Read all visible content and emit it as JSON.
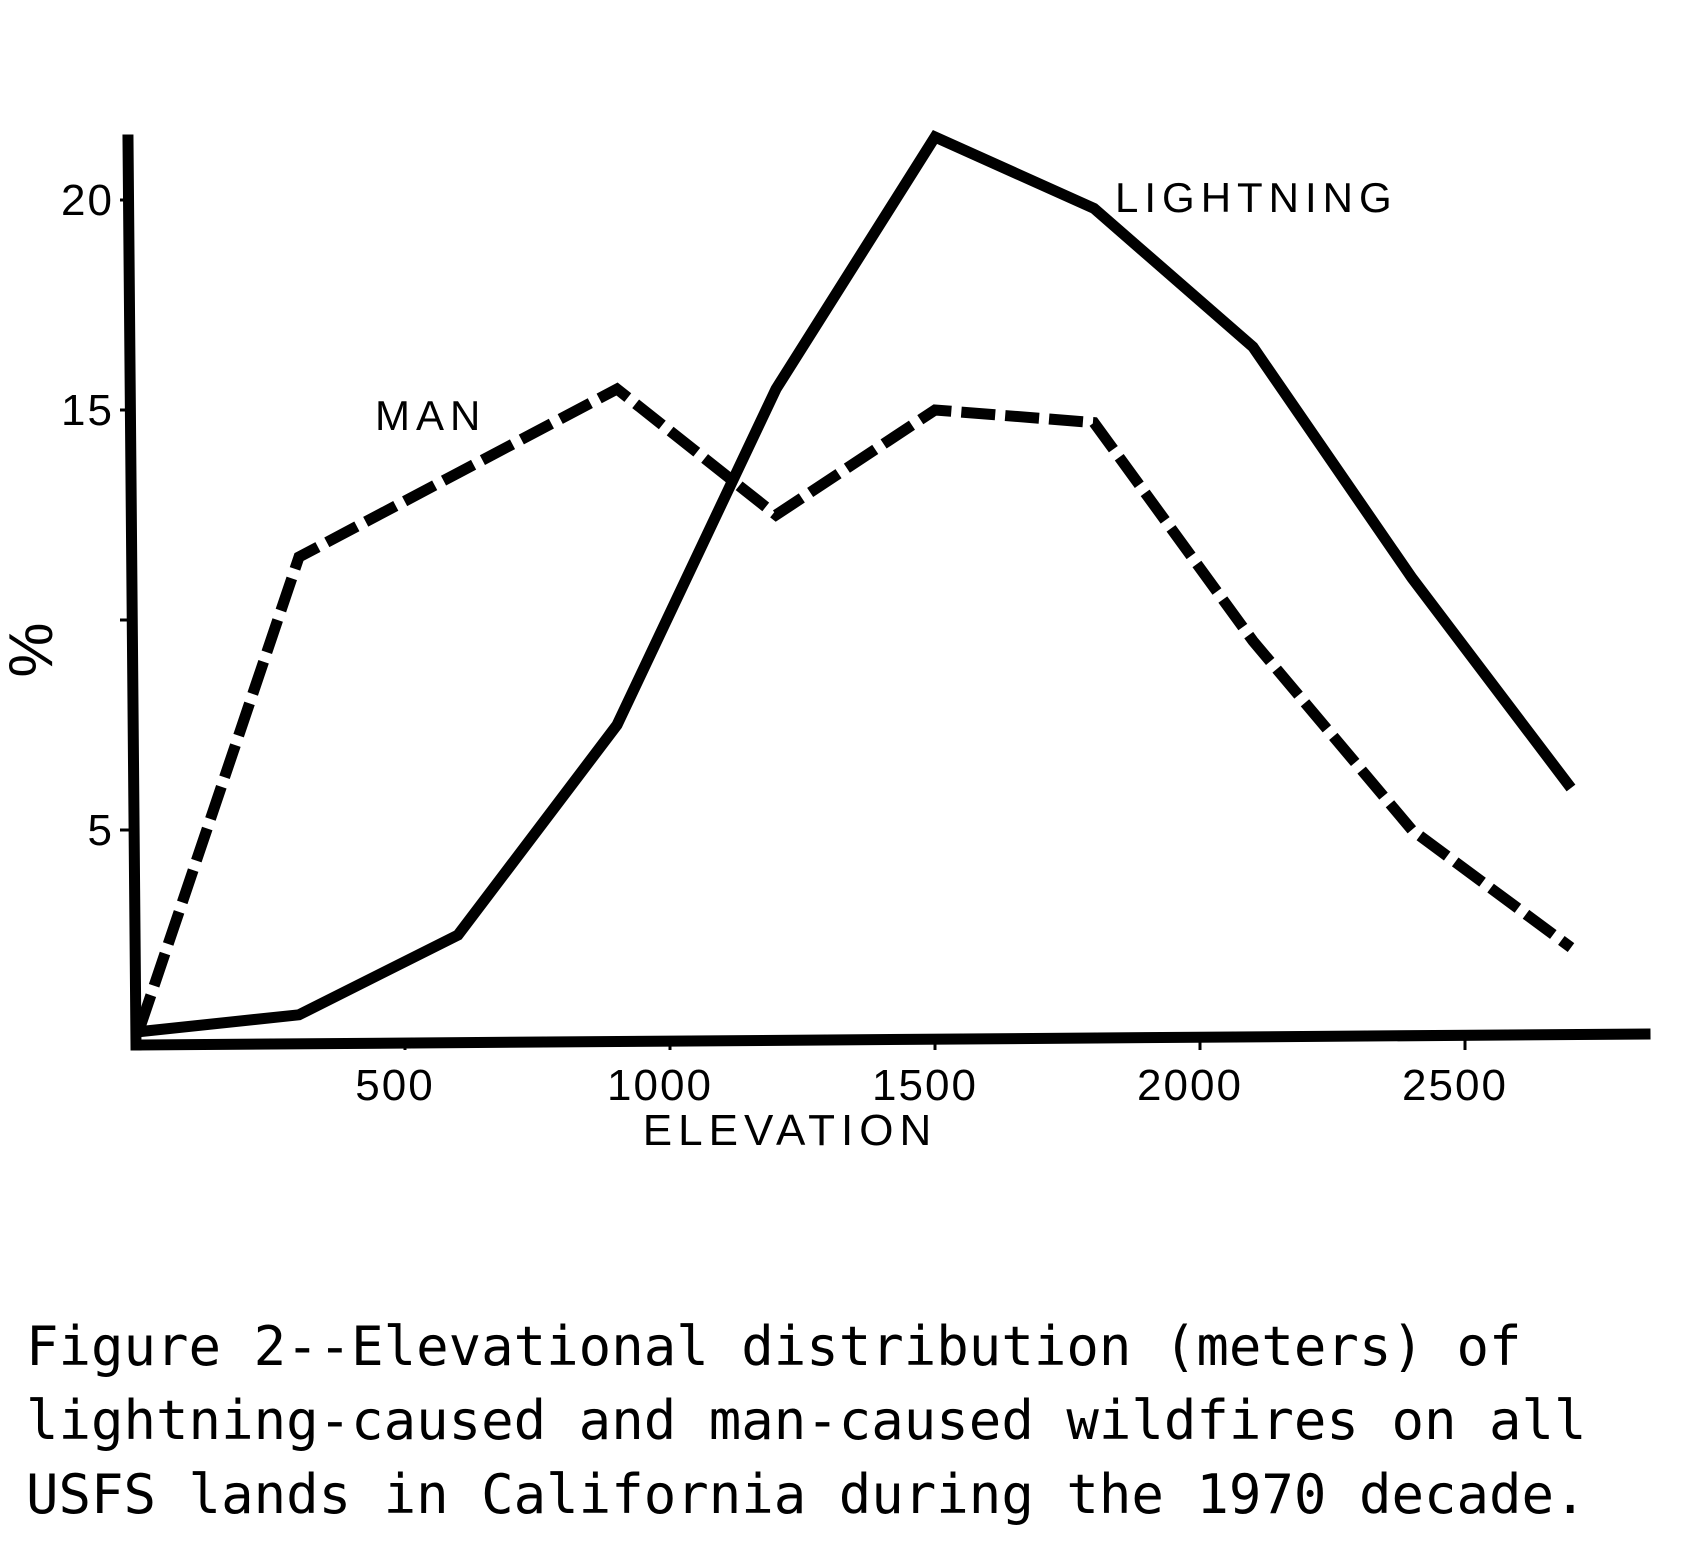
{
  "chart_data": {
    "type": "line",
    "title": "",
    "xlabel": "ELEVATION",
    "ylabel": "%",
    "xlim": [
      0,
      2800
    ],
    "ylim": [
      0,
      21.5
    ],
    "x_ticks": [
      500,
      1000,
      1500,
      2000,
      2500
    ],
    "y_ticks": [
      5,
      15,
      20
    ],
    "y_unlabeled_ticks": [
      10
    ],
    "grid": false,
    "legend": "none (series labeled directly on plot)",
    "series": [
      {
        "name": "MAN",
        "style": "dashed",
        "x": [
          0,
          300,
          600,
          900,
          1200,
          1500,
          1800,
          2100,
          2400,
          2700
        ],
        "y": [
          0.3,
          11.5,
          13.5,
          15.5,
          12.5,
          15.0,
          14.7,
          9.5,
          5.0,
          2.2
        ]
      },
      {
        "name": "LIGHTNING",
        "style": "solid",
        "x": [
          0,
          300,
          600,
          900,
          1200,
          1500,
          1800,
          2100,
          2400,
          2700
        ],
        "y": [
          0.2,
          0.6,
          2.5,
          7.5,
          15.5,
          21.5,
          19.8,
          16.5,
          11.0,
          6.0
        ]
      }
    ]
  },
  "caption": "Figure 2--Elevational distribution (meters) of\nlightning-caused and man-caused wildfires on all\nUSFS lands in California during the 1970 decade."
}
